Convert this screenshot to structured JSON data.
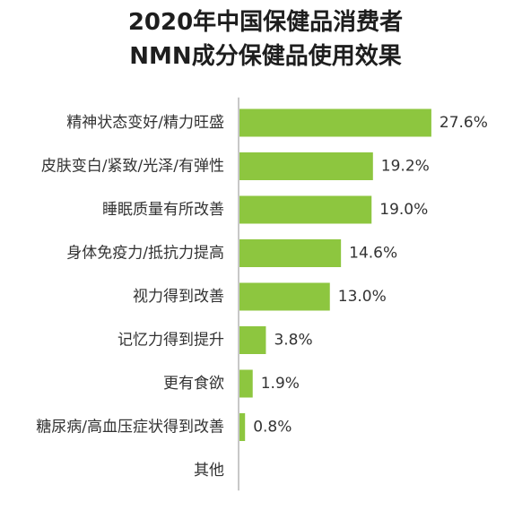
{
  "chart_data": {
    "type": "bar",
    "orientation": "horizontal",
    "title_lines": [
      "2020年中国保健品消费者",
      "NMN成分保健品使用效果"
    ],
    "categories": [
      "精神状态变好/精力旺盛",
      "皮肤变白/紧致/光泽/有弹性",
      "睡眠质量有所改善",
      "身体免疫力/抵抗力提高",
      "视力得到改善",
      "记忆力得到提升",
      "更有食欲",
      "糖尿病/高血压症状得到改善",
      "其他"
    ],
    "values": [
      27.6,
      19.2,
      19.0,
      14.6,
      13.0,
      3.8,
      1.9,
      0.8,
      null
    ],
    "value_labels": [
      "27.6%",
      "19.2%",
      "19.0%",
      "14.6%",
      "13.0%",
      "3.8%",
      "1.9%",
      "0.8%",
      ""
    ],
    "xlim": [
      0,
      30
    ],
    "unit": "%",
    "grid": false,
    "legend": "none",
    "colors": {
      "bar": "#8dc63f",
      "axis": "#b5b5b5",
      "text": "#333333",
      "title": "#1e1e1e"
    }
  }
}
